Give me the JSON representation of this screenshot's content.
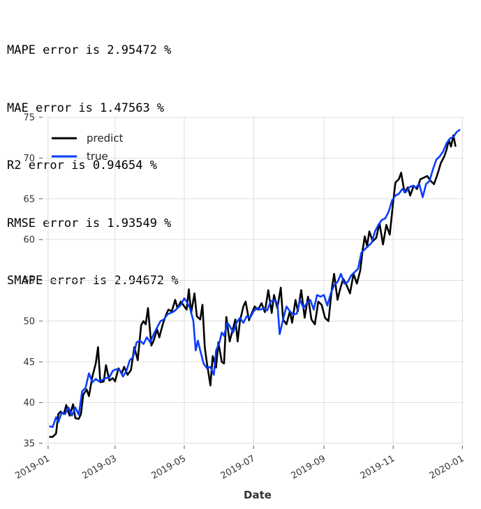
{
  "metrics": [
    "MAPE error is 2.95472 %",
    "MAE error is 1.47563 %",
    "R2 error is 0.94654 %",
    "RMSE error is 1.93549 %",
    "SMAPE error is 2.94672 %"
  ],
  "chart_data": {
    "type": "line",
    "xlabel": "Date",
    "ylabel": "",
    "xlim": [
      "2018-12-29",
      "2020-01-02"
    ],
    "ylim": [
      35,
      75
    ],
    "grid": true,
    "legend_position": "top-left",
    "x_ticks": [
      "2019-01",
      "2019-03",
      "2019-05",
      "2019-07",
      "2019-09",
      "2019-11",
      "2020-01"
    ],
    "y_ticks": [
      35,
      40,
      45,
      50,
      55,
      60,
      65,
      70,
      75
    ],
    "series": [
      {
        "name": "predict",
        "color": "#000000",
        "points": [
          [
            "2019-01-02",
            35.8
          ],
          [
            "2019-01-05",
            35.8
          ],
          [
            "2019-01-08",
            36.2
          ],
          [
            "2019-01-10",
            38.6
          ],
          [
            "2019-01-12",
            38.9
          ],
          [
            "2019-01-15",
            38.6
          ],
          [
            "2019-01-17",
            39.7
          ],
          [
            "2019-01-20",
            38.4
          ],
          [
            "2019-01-23",
            39.8
          ],
          [
            "2019-01-25",
            38.1
          ],
          [
            "2019-01-28",
            38.0
          ],
          [
            "2019-01-30",
            38.6
          ],
          [
            "2019-02-01",
            41.0
          ],
          [
            "2019-02-04",
            41.6
          ],
          [
            "2019-02-06",
            40.8
          ],
          [
            "2019-02-09",
            43.2
          ],
          [
            "2019-02-12",
            44.8
          ],
          [
            "2019-02-14",
            46.8
          ],
          [
            "2019-02-16",
            42.5
          ],
          [
            "2019-02-19",
            42.6
          ],
          [
            "2019-02-21",
            44.6
          ],
          [
            "2019-02-24",
            42.7
          ],
          [
            "2019-02-27",
            43.0
          ],
          [
            "2019-03-01",
            42.6
          ],
          [
            "2019-03-04",
            44.2
          ],
          [
            "2019-03-07",
            43.6
          ],
          [
            "2019-03-09",
            44.4
          ],
          [
            "2019-03-12",
            43.4
          ],
          [
            "2019-03-15",
            44.0
          ],
          [
            "2019-03-18",
            46.8
          ],
          [
            "2019-03-21",
            45.2
          ],
          [
            "2019-03-24",
            49.5
          ],
          [
            "2019-03-26",
            50.0
          ],
          [
            "2019-03-28",
            49.6
          ],
          [
            "2019-03-30",
            51.6
          ],
          [
            "2019-04-02",
            47.0
          ],
          [
            "2019-04-04",
            47.6
          ],
          [
            "2019-04-07",
            49.0
          ],
          [
            "2019-04-09",
            48.0
          ],
          [
            "2019-04-12",
            49.6
          ],
          [
            "2019-04-15",
            50.8
          ],
          [
            "2019-04-17",
            51.4
          ],
          [
            "2019-04-20",
            51.2
          ],
          [
            "2019-04-23",
            52.6
          ],
          [
            "2019-04-25",
            51.6
          ],
          [
            "2019-04-28",
            52.4
          ],
          [
            "2019-04-30",
            52.0
          ],
          [
            "2019-05-03",
            51.4
          ],
          [
            "2019-05-05",
            53.9
          ],
          [
            "2019-05-07",
            51.0
          ],
          [
            "2019-05-10",
            53.4
          ],
          [
            "2019-05-12",
            50.6
          ],
          [
            "2019-05-15",
            50.2
          ],
          [
            "2019-05-17",
            52.0
          ],
          [
            "2019-05-19",
            46.8
          ],
          [
            "2019-05-21",
            44.8
          ],
          [
            "2019-05-24",
            42.1
          ],
          [
            "2019-05-26",
            45.7
          ],
          [
            "2019-05-29",
            44.3
          ],
          [
            "2019-05-31",
            47.4
          ],
          [
            "2019-06-03",
            45.0
          ],
          [
            "2019-06-05",
            44.8
          ],
          [
            "2019-06-07",
            50.5
          ],
          [
            "2019-06-10",
            47.5
          ],
          [
            "2019-06-12",
            48.6
          ],
          [
            "2019-06-15",
            50.2
          ],
          [
            "2019-06-17",
            47.5
          ],
          [
            "2019-06-19",
            50.0
          ],
          [
            "2019-06-22",
            51.8
          ],
          [
            "2019-06-24",
            52.4
          ],
          [
            "2019-06-27",
            50.1
          ],
          [
            "2019-06-29",
            50.8
          ],
          [
            "2019-07-02",
            51.8
          ],
          [
            "2019-07-05",
            51.4
          ],
          [
            "2019-07-08",
            52.2
          ],
          [
            "2019-07-11",
            51.1
          ],
          [
            "2019-07-14",
            53.8
          ],
          [
            "2019-07-17",
            51.0
          ],
          [
            "2019-07-19",
            53.2
          ],
          [
            "2019-07-22",
            51.6
          ],
          [
            "2019-07-25",
            54.1
          ],
          [
            "2019-07-27",
            50.2
          ],
          [
            "2019-07-30",
            49.6
          ],
          [
            "2019-08-02",
            51.2
          ],
          [
            "2019-08-04",
            49.8
          ],
          [
            "2019-08-07",
            52.6
          ],
          [
            "2019-08-09",
            51.2
          ],
          [
            "2019-08-12",
            53.8
          ],
          [
            "2019-08-15",
            50.4
          ],
          [
            "2019-08-18",
            53.0
          ],
          [
            "2019-08-21",
            50.2
          ],
          [
            "2019-08-24",
            49.6
          ],
          [
            "2019-08-27",
            52.4
          ],
          [
            "2019-08-30",
            52.0
          ],
          [
            "2019-09-02",
            50.4
          ],
          [
            "2019-09-05",
            50.0
          ],
          [
            "2019-09-08",
            54.0
          ],
          [
            "2019-09-10",
            55.8
          ],
          [
            "2019-09-13",
            52.6
          ],
          [
            "2019-09-15",
            53.8
          ],
          [
            "2019-09-18",
            55.2
          ],
          [
            "2019-09-21",
            54.4
          ],
          [
            "2019-09-24",
            53.4
          ],
          [
            "2019-09-27",
            55.8
          ],
          [
            "2019-09-30",
            54.6
          ],
          [
            "2019-10-03",
            56.2
          ],
          [
            "2019-10-05",
            58.6
          ],
          [
            "2019-10-07",
            60.4
          ],
          [
            "2019-10-09",
            59.2
          ],
          [
            "2019-10-11",
            61.0
          ],
          [
            "2019-10-14",
            59.8
          ],
          [
            "2019-10-17",
            60.2
          ],
          [
            "2019-10-20",
            62.0
          ],
          [
            "2019-10-23",
            59.4
          ],
          [
            "2019-10-26",
            61.8
          ],
          [
            "2019-10-29",
            60.6
          ],
          [
            "2019-11-01",
            64.6
          ],
          [
            "2019-11-03",
            67.0
          ],
          [
            "2019-11-06",
            67.4
          ],
          [
            "2019-11-08",
            68.2
          ],
          [
            "2019-11-11",
            65.8
          ],
          [
            "2019-11-14",
            66.4
          ],
          [
            "2019-11-16",
            65.4
          ],
          [
            "2019-11-19",
            66.6
          ],
          [
            "2019-11-22",
            66.2
          ],
          [
            "2019-11-25",
            67.4
          ],
          [
            "2019-11-28",
            67.6
          ],
          [
            "2019-12-01",
            67.8
          ],
          [
            "2019-12-04",
            67.2
          ],
          [
            "2019-12-07",
            66.8
          ],
          [
            "2019-12-10",
            68.0
          ],
          [
            "2019-12-13",
            69.4
          ],
          [
            "2019-12-16",
            70.2
          ],
          [
            "2019-12-18",
            71.0
          ],
          [
            "2019-12-20",
            72.2
          ],
          [
            "2019-12-22",
            71.4
          ],
          [
            "2019-12-24",
            72.8
          ],
          [
            "2019-12-26",
            71.4
          ]
        ]
      },
      {
        "name": "true",
        "color": "#0a3cff",
        "points": [
          [
            "2019-01-02",
            37.1
          ],
          [
            "2019-01-05",
            37.0
          ],
          [
            "2019-01-08",
            38.2
          ],
          [
            "2019-01-10",
            37.6
          ],
          [
            "2019-01-13",
            38.8
          ],
          [
            "2019-01-16",
            38.6
          ],
          [
            "2019-01-19",
            39.4
          ],
          [
            "2019-01-22",
            38.4
          ],
          [
            "2019-01-25",
            39.4
          ],
          [
            "2019-01-28",
            38.5
          ],
          [
            "2019-01-31",
            41.4
          ],
          [
            "2019-02-03",
            41.8
          ],
          [
            "2019-02-06",
            43.6
          ],
          [
            "2019-02-09",
            42.5
          ],
          [
            "2019-02-12",
            42.9
          ],
          [
            "2019-02-15",
            42.6
          ],
          [
            "2019-02-18",
            42.8
          ],
          [
            "2019-02-21",
            43.0
          ],
          [
            "2019-02-24",
            43.1
          ],
          [
            "2019-02-27",
            43.9
          ],
          [
            "2019-03-02",
            44.1
          ],
          [
            "2019-03-05",
            44.0
          ],
          [
            "2019-03-08",
            43.2
          ],
          [
            "2019-03-11",
            43.9
          ],
          [
            "2019-03-14",
            45.2
          ],
          [
            "2019-03-17",
            45.6
          ],
          [
            "2019-03-20",
            47.4
          ],
          [
            "2019-03-23",
            47.6
          ],
          [
            "2019-03-26",
            47.2
          ],
          [
            "2019-03-29",
            48.0
          ],
          [
            "2019-04-01",
            47.4
          ],
          [
            "2019-04-04",
            48.4
          ],
          [
            "2019-04-07",
            49.2
          ],
          [
            "2019-04-10",
            50.0
          ],
          [
            "2019-04-13",
            50.2
          ],
          [
            "2019-04-16",
            50.8
          ],
          [
            "2019-04-19",
            51.0
          ],
          [
            "2019-04-22",
            51.2
          ],
          [
            "2019-04-25",
            51.6
          ],
          [
            "2019-04-28",
            52.0
          ],
          [
            "2019-05-01",
            52.8
          ],
          [
            "2019-05-03",
            52.4
          ],
          [
            "2019-05-06",
            51.6
          ],
          [
            "2019-05-09",
            50.0
          ],
          [
            "2019-05-11",
            46.4
          ],
          [
            "2019-05-13",
            47.6
          ],
          [
            "2019-05-15",
            46.4
          ],
          [
            "2019-05-18",
            44.8
          ],
          [
            "2019-05-21",
            44.2
          ],
          [
            "2019-05-24",
            44.4
          ],
          [
            "2019-05-27",
            43.4
          ],
          [
            "2019-05-29",
            46.4
          ],
          [
            "2019-06-01",
            47.4
          ],
          [
            "2019-06-03",
            48.6
          ],
          [
            "2019-06-05",
            48.2
          ],
          [
            "2019-06-08",
            49.8
          ],
          [
            "2019-06-10",
            49.4
          ],
          [
            "2019-06-13",
            48.6
          ],
          [
            "2019-06-16",
            49.8
          ],
          [
            "2019-06-19",
            50.4
          ],
          [
            "2019-06-22",
            49.8
          ],
          [
            "2019-06-25",
            50.6
          ],
          [
            "2019-06-28",
            50.4
          ],
          [
            "2019-07-01",
            51.2
          ],
          [
            "2019-07-04",
            51.6
          ],
          [
            "2019-07-07",
            51.4
          ],
          [
            "2019-07-10",
            51.6
          ],
          [
            "2019-07-13",
            51.3
          ],
          [
            "2019-07-16",
            52.4
          ],
          [
            "2019-07-19",
            52.6
          ],
          [
            "2019-07-22",
            52.2
          ],
          [
            "2019-07-24",
            48.4
          ],
          [
            "2019-07-27",
            50.2
          ],
          [
            "2019-07-30",
            51.8
          ],
          [
            "2019-08-02",
            51.2
          ],
          [
            "2019-08-05",
            50.8
          ],
          [
            "2019-08-08",
            50.9
          ],
          [
            "2019-08-11",
            52.6
          ],
          [
            "2019-08-14",
            51.6
          ],
          [
            "2019-08-17",
            52.2
          ],
          [
            "2019-08-20",
            52.6
          ],
          [
            "2019-08-23",
            51.4
          ],
          [
            "2019-08-26",
            53.2
          ],
          [
            "2019-08-29",
            53.0
          ],
          [
            "2019-09-01",
            53.2
          ],
          [
            "2019-09-04",
            51.9
          ],
          [
            "2019-09-07",
            53.4
          ],
          [
            "2019-09-10",
            54.4
          ],
          [
            "2019-09-13",
            54.8
          ],
          [
            "2019-09-16",
            55.8
          ],
          [
            "2019-09-19",
            54.6
          ],
          [
            "2019-09-22",
            54.8
          ],
          [
            "2019-09-25",
            55.6
          ],
          [
            "2019-09-28",
            56.0
          ],
          [
            "2019-10-01",
            56.4
          ],
          [
            "2019-10-04",
            58.4
          ],
          [
            "2019-10-07",
            58.8
          ],
          [
            "2019-10-10",
            59.2
          ],
          [
            "2019-10-13",
            59.6
          ],
          [
            "2019-10-16",
            61.0
          ],
          [
            "2019-10-19",
            61.8
          ],
          [
            "2019-10-22",
            62.4
          ],
          [
            "2019-10-25",
            62.6
          ],
          [
            "2019-10-28",
            63.4
          ],
          [
            "2019-10-31",
            64.8
          ],
          [
            "2019-11-03",
            65.4
          ],
          [
            "2019-11-06",
            65.6
          ],
          [
            "2019-11-09",
            66.2
          ],
          [
            "2019-11-12",
            65.8
          ],
          [
            "2019-11-15",
            66.4
          ],
          [
            "2019-11-18",
            66.6
          ],
          [
            "2019-11-21",
            66.4
          ],
          [
            "2019-11-24",
            66.8
          ],
          [
            "2019-11-27",
            65.2
          ],
          [
            "2019-11-30",
            66.8
          ],
          [
            "2019-12-03",
            67.2
          ],
          [
            "2019-12-06",
            68.6
          ],
          [
            "2019-12-09",
            69.8
          ],
          [
            "2019-12-12",
            70.2
          ],
          [
            "2019-12-15",
            70.8
          ],
          [
            "2019-12-18",
            71.8
          ],
          [
            "2019-12-21",
            72.4
          ],
          [
            "2019-12-24",
            72.6
          ],
          [
            "2019-12-27",
            73.2
          ],
          [
            "2019-12-30",
            73.5
          ]
        ]
      }
    ]
  }
}
